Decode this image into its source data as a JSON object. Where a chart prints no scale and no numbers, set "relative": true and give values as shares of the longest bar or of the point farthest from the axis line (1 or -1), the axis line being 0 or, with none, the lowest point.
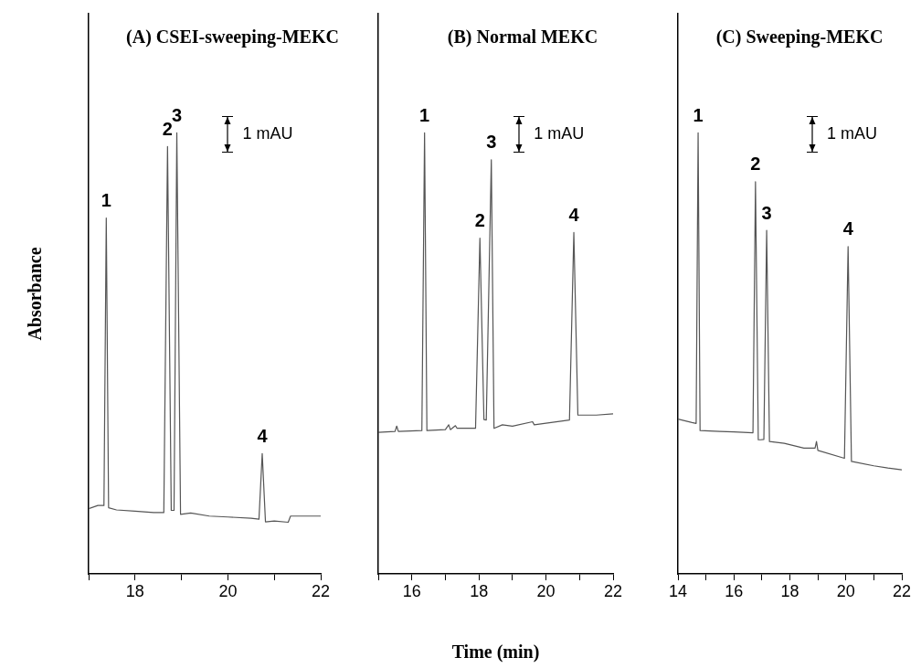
{
  "chart_data": [
    {
      "type": "line",
      "title": "(A) CSEI-sweeping-MEKC",
      "ylabel": "Absorbance",
      "relative": true,
      "legend": false,
      "grid": false,
      "marker": "none",
      "line_style": "solid",
      "tick_labels": "x",
      "xlim": [
        17,
        22
      ],
      "xticks": [
        {
          "value": 17,
          "label": null
        },
        18,
        {
          "value": 19,
          "label": null
        },
        20,
        {
          "value": 21,
          "label": null
        },
        22
      ],
      "series": [
        {
          "color": "#555555",
          "x": [
            17.0,
            17.2,
            17.33,
            17.38,
            17.43,
            17.6,
            18.0,
            18.4,
            18.62,
            18.7,
            18.78,
            18.84,
            18.9,
            18.98,
            19.2,
            19.6,
            20.0,
            20.5,
            20.67,
            20.74,
            20.81,
            21.0,
            21.3,
            21.35,
            22.0
          ],
          "values": [
            0.148,
            0.155,
            0.155,
            0.807,
            0.15,
            0.145,
            0.142,
            0.139,
            0.139,
            0.969,
            0.144,
            0.144,
            1.0,
            0.135,
            0.138,
            0.131,
            0.129,
            0.126,
            0.124,
            0.273,
            0.118,
            0.12,
            0.117,
            0.131,
            0.131
          ]
        }
      ],
      "annotations": [
        {
          "text": "1",
          "x": 17.38,
          "y": 0.807
        },
        {
          "text": "2",
          "x": 18.7,
          "y": 0.969
        },
        {
          "text": "3",
          "x": 18.9,
          "y": 1.0
        },
        {
          "text": "4",
          "x": 20.74,
          "y": 0.273
        },
        "1 mAU"
      ]
    },
    {
      "type": "line",
      "title": "(B) Normal MEKC",
      "xlabel": "Time (min)",
      "relative": true,
      "legend": false,
      "grid": false,
      "marker": "none",
      "line_style": "solid",
      "tick_labels": "x",
      "xlim": [
        15,
        22
      ],
      "xticks": [
        {
          "value": 15,
          "label": null
        },
        16,
        {
          "value": 17,
          "label": null
        },
        18,
        {
          "value": 19,
          "label": null
        },
        20,
        {
          "value": 21,
          "label": null
        },
        22
      ],
      "series": [
        {
          "color": "#555555",
          "x": [
            15.0,
            15.5,
            15.55,
            15.6,
            16.3,
            16.38,
            16.45,
            17.0,
            17.1,
            17.15,
            17.3,
            17.35,
            17.9,
            18.03,
            18.15,
            18.22,
            18.37,
            18.45,
            18.7,
            19.0,
            19.6,
            19.65,
            20.7,
            20.83,
            20.95,
            21.5,
            22.0
          ],
          "values": [
            0.321,
            0.323,
            0.335,
            0.323,
            0.325,
            1.0,
            0.325,
            0.327,
            0.338,
            0.327,
            0.336,
            0.33,
            0.33,
            0.761,
            0.35,
            0.349,
            0.939,
            0.33,
            0.338,
            0.335,
            0.345,
            0.338,
            0.349,
            0.774,
            0.36,
            0.36,
            0.363
          ]
        }
      ],
      "annotations": [
        {
          "text": "1",
          "x": 16.38,
          "y": 1.0
        },
        {
          "text": "2",
          "x": 18.03,
          "y": 0.761
        },
        {
          "text": "3",
          "x": 18.37,
          "y": 0.939
        },
        {
          "text": "4",
          "x": 20.83,
          "y": 0.774
        },
        "1 mAU"
      ]
    },
    {
      "type": "line",
      "title": "(C) Sweeping-MEKC",
      "relative": true,
      "legend": false,
      "grid": false,
      "marker": "none",
      "line_style": "solid",
      "tick_labels": "x",
      "xlim": [
        14,
        22
      ],
      "xticks": [
        14,
        {
          "value": 15,
          "label": null
        },
        16,
        {
          "value": 17,
          "label": null
        },
        18,
        {
          "value": 19,
          "label": null
        },
        20,
        {
          "value": 21,
          "label": null
        },
        22
      ],
      "series": [
        {
          "color": "#555555",
          "x": [
            14.0,
            14.5,
            14.65,
            14.72,
            14.79,
            15.5,
            16.0,
            16.68,
            16.77,
            16.87,
            16.95,
            17.07,
            17.17,
            17.27,
            17.8,
            18.5,
            18.9,
            18.95,
            19.0,
            19.95,
            20.08,
            20.2,
            21.0,
            21.5,
            22.0
          ],
          "values": [
            0.351,
            0.343,
            0.341,
            1.0,
            0.325,
            0.323,
            0.322,
            0.32,
            0.889,
            0.304,
            0.304,
            0.305,
            0.779,
            0.3,
            0.296,
            0.285,
            0.285,
            0.3,
            0.28,
            0.262,
            0.742,
            0.255,
            0.245,
            0.24,
            0.236
          ]
        }
      ],
      "annotations": [
        {
          "text": "1",
          "x": 14.72,
          "y": 1.0
        },
        {
          "text": "2",
          "x": 16.77,
          "y": 0.889
        },
        {
          "text": "3",
          "x": 17.17,
          "y": 0.779
        },
        {
          "text": "4",
          "x": 20.08,
          "y": 0.742
        },
        "1 mAU"
      ]
    }
  ]
}
